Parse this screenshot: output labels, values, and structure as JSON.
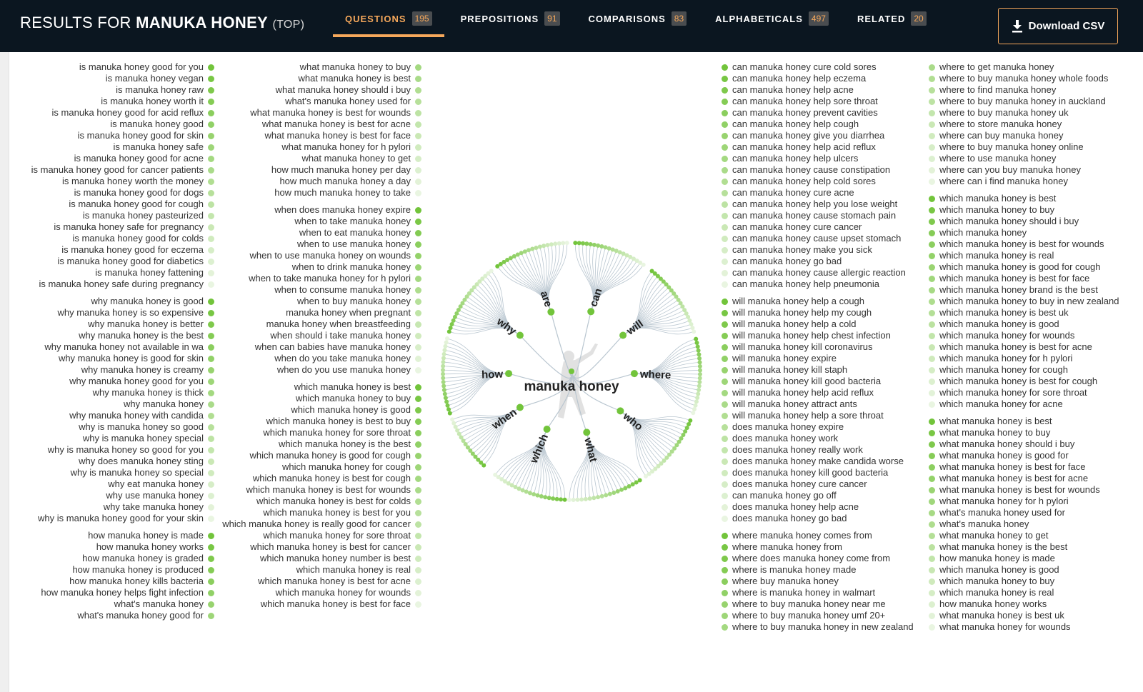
{
  "header": {
    "title_prefix": "RESULTS FOR",
    "keyword": "MANUKA HONEY",
    "mode": "(TOP)",
    "tabs": [
      {
        "label": "QUESTIONS",
        "count": "195",
        "active": true
      },
      {
        "label": "PREPOSITIONS",
        "count": "91",
        "active": false
      },
      {
        "label": "COMPARISONS",
        "count": "83",
        "active": false
      },
      {
        "label": "ALPHABETICALS",
        "count": "497",
        "active": false
      },
      {
        "label": "RELATED",
        "count": "20",
        "active": false
      }
    ],
    "download_label": "Download CSV",
    "download_icon": "download-icon"
  },
  "colors": {
    "header_bg": "#0b1620",
    "accent": "#f6a85b",
    "node_dark": "#72c43b",
    "node_light": "#e9f5e1",
    "link": "#b9c6d0"
  },
  "diagram": {
    "center_label": "manuka honey",
    "branches": [
      {
        "label": "where",
        "leaves": [
          "where manuka honey comes from",
          "where manuka honey from",
          "where does manuka honey come from",
          "where is manuka honey made",
          "where buy manuka honey",
          "where is manuka honey in walmart",
          "where to buy manuka honey near me",
          "where to buy manuka honey umf 20+",
          "where to buy manuka honey in new zealand",
          "where to get manuka honey",
          "where to buy manuka honey whole foods",
          "where to find manuka honey",
          "where to buy manuka honey in auckland",
          "where to buy manuka honey uk",
          "where to store manuka honey",
          "where can buy manuka honey",
          "where to buy manuka honey online",
          "where to use manuka honey",
          "where can you buy manuka honey",
          "where can i find manuka honey"
        ]
      },
      {
        "label": "who",
        "leaves": [
          "which manuka honey is best",
          "which manuka honey to buy",
          "which manuka honey should i buy",
          "which manuka honey",
          "which manuka honey is best for wounds",
          "which manuka honey is real",
          "which manuka honey is good for cough",
          "which manuka honey is best for face",
          "which manuka honey brand is the best",
          "which manuka honey to buy in new zealand",
          "which manuka honey is best uk",
          "which manuka honey is good",
          "which manuka honey for wounds",
          "which manuka honey is best for acne",
          "which manuka honey for h pylori",
          "which manuka honey for cough",
          "which manuka honey is best for cough",
          "which manuka honey for sore throat",
          "which manuka honey for acne"
        ]
      },
      {
        "label": "what",
        "leaves": [
          "what manuka honey is best",
          "what manuka honey to buy",
          "what manuka honey should i buy",
          "what manuka honey is good for",
          "what manuka honey is best for face",
          "what manuka honey is best for acne",
          "what manuka honey is best for wounds",
          "what manuka honey for h pylori",
          "what's manuka honey used for",
          "what's manuka honey",
          "what manuka honey to get",
          "what manuka honey is the best",
          "how manuka honey is made",
          "which manuka honey is good",
          "which manuka honey to buy",
          "which manuka honey is real",
          "how manuka honey works",
          "what manuka honey is best uk",
          "what manuka honey for wounds"
        ]
      },
      {
        "label": "which",
        "leaves": [
          "which manuka honey is best",
          "which manuka honey to buy",
          "which manuka honey is good",
          "which manuka honey is best to buy",
          "which manuka honey for sore throat",
          "which manuka honey is the best",
          "which manuka honey is good for cough",
          "which manuka honey for cough",
          "which manuka honey is best for cough",
          "which manuka honey is best for wounds",
          "which manuka honey is best for colds",
          "which manuka honey is best for you",
          "which manuka honey is really good for cancer",
          "which manuka honey for sore throat",
          "which manuka honey is best for cancer",
          "which manuka honey number is best",
          "which manuka honey is real",
          "which manuka honey is best for acne",
          "which manuka honey for wounds",
          "which manuka honey is best for face"
        ]
      },
      {
        "label": "when",
        "leaves": [
          "when does manuka honey expire",
          "when to take manuka honey",
          "when to eat manuka honey",
          "when to use manuka honey",
          "when to use manuka honey on wounds",
          "when to drink manuka honey",
          "when to take manuka honey for h pylori",
          "when to consume manuka honey",
          "when to buy manuka honey",
          "manuka honey when pregnant",
          "manuka honey when breastfeeding",
          "when should i take manuka honey",
          "when can babies have manuka honey",
          "when do you take manuka honey",
          "when do you use manuka honey"
        ]
      },
      {
        "label": "how",
        "leaves": [
          "how manuka honey is made",
          "how manuka honey works",
          "how manuka honey is graded",
          "how manuka honey is produced",
          "how manuka honey kills bacteria",
          "how manuka honey helps fight infection",
          "what's manuka honey",
          "what's manuka honey good for",
          "what manuka honey to buy",
          "what manuka honey is best",
          "what manuka honey should i buy",
          "what's manuka honey used for",
          "what manuka honey is best for wounds",
          "what manuka honey is best for acne",
          "what manuka honey is best for face",
          "what manuka honey for h pylori",
          "what manuka honey to get",
          "how much manuka honey per day",
          "how much manuka honey a day",
          "how much manuka honey to take"
        ]
      },
      {
        "label": "why",
        "leaves": [
          "why manuka honey is good",
          "why manuka honey is so expensive",
          "why manuka honey is better",
          "why manuka honey is the best",
          "why manuka honey not available in wa",
          "why manuka honey is good for skin",
          "why manuka honey is creamy",
          "why manuka honey good for you",
          "why manuka honey is thick",
          "why manuka honey",
          "why manuka honey with candida",
          "why is manuka honey so good",
          "why is manuka honey special",
          "why is manuka honey so good for you",
          "why does manuka honey sting",
          "why is manuka honey so special",
          "why eat manuka honey",
          "why use manuka honey",
          "why take manuka honey",
          "why is manuka honey good for your skin"
        ]
      },
      {
        "label": "are",
        "leaves": [
          "is manuka honey good for you",
          "is manuka honey vegan",
          "is manuka honey raw",
          "is manuka honey worth it",
          "is manuka honey good for acid reflux",
          "is manuka honey good",
          "is manuka honey good for skin",
          "is manuka honey safe",
          "is manuka honey good for acne",
          "is manuka honey good for cancer patients",
          "is manuka honey worth the money",
          "is manuka honey good for dogs",
          "is manuka honey good for cough",
          "is manuka honey pasteurized",
          "is manuka honey safe for pregnancy",
          "is manuka honey good for colds",
          "is manuka honey good for eczema",
          "is manuka honey good for diabetics",
          "is manuka honey fattening",
          "is manuka honey safe during pregnancy"
        ]
      },
      {
        "label": "can",
        "leaves": [
          "can manuka honey cure cold sores",
          "can manuka honey help eczema",
          "can manuka honey help acne",
          "can manuka honey help sore throat",
          "can manuka honey prevent cavities",
          "can manuka honey help cough",
          "can manuka honey give you diarrhea",
          "can manuka honey help acid reflux",
          "can manuka honey help ulcers",
          "can manuka honey cause constipation",
          "can manuka honey help cold sores",
          "can manuka honey cure acne",
          "can manuka honey help you lose weight",
          "can manuka honey cause stomach pain",
          "can manuka honey cure cancer",
          "can manuka honey cause upset stomach",
          "can manuka honey make you sick",
          "can manuka honey go bad",
          "can manuka honey cause allergic reaction",
          "can manuka honey help pneumonia"
        ]
      },
      {
        "label": "will",
        "leaves": [
          "will manuka honey help a cough",
          "will manuka honey help my cough",
          "will manuka honey help a cold",
          "will manuka honey help chest infection",
          "will manuka honey kill coronavirus",
          "will manuka honey expire",
          "will manuka honey kill staph",
          "will manuka honey kill good bacteria",
          "will manuka honey help acid reflux",
          "will manuka honey attract ants",
          "will manuka honey help a sore throat",
          "does manuka honey expire",
          "does manuka honey work",
          "does manuka honey really work",
          "does manuka honey make candida worse",
          "does manuka honey kill good bacteria",
          "does manuka honey cure cancer",
          "can manuka honey go off",
          "does manuka honey help acne",
          "does manuka honey go bad"
        ]
      }
    ]
  }
}
